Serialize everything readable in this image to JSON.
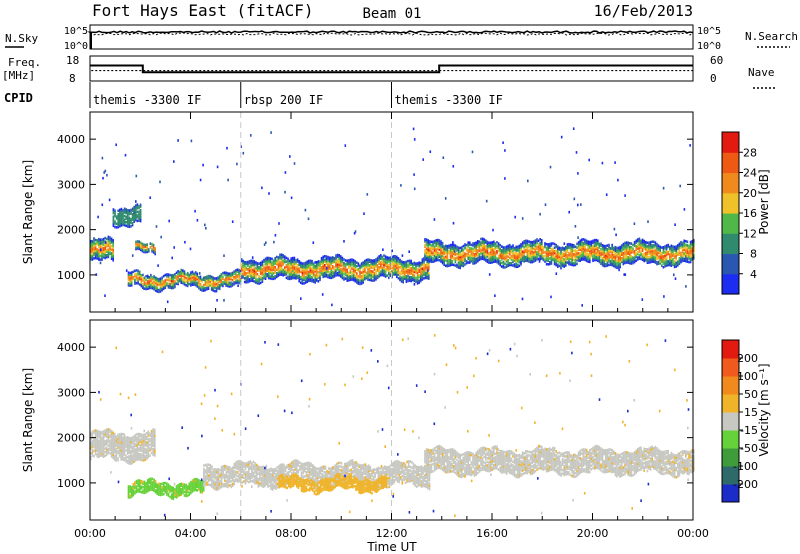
{
  "header": {
    "title": "Fort Hays East (fitACF)",
    "beam": "Beam 01",
    "date": "16/Feb/2013"
  },
  "top_panels": {
    "nsky_label": "N.Sky",
    "nsearch_label": "N.Search",
    "noise_left_ticks": [
      "10^5",
      "10^0"
    ],
    "noise_right_ticks": [
      "10^5",
      "10^0"
    ],
    "freq_label_1": "Freq.",
    "freq_label_2": "[MHz]",
    "freq_ticks": [
      "18",
      "8"
    ],
    "nave_label": "Nave",
    "nave_ticks": [
      "60",
      "0"
    ],
    "cpid_label": "CPID",
    "freq_steps": [
      {
        "t0": 0.0,
        "t1": 2.1,
        "mhz": 14.2
      },
      {
        "t0": 2.1,
        "t1": 13.9,
        "mhz": 11.5
      },
      {
        "t0": 13.9,
        "t1": 24.0,
        "mhz": 14.2
      }
    ],
    "nave_level": 25,
    "cpid_segments": [
      {
        "start_hour": 0,
        "label": "themis -3300 IF"
      },
      {
        "start_hour": 6,
        "label": "rbsp 200 IF"
      },
      {
        "start_hour": 12,
        "label": "themis -3300 IF"
      }
    ]
  },
  "chart_data": [
    {
      "type": "heatmap",
      "quantity": "Power",
      "ylabel": "Slant Range [km]",
      "xlabel": "Time UT",
      "xlim": [
        0,
        24
      ],
      "ylim": [
        180,
        4600
      ],
      "yticks": [
        "1000",
        "2000",
        "3000",
        "4000"
      ],
      "colorbar_label": "Power [dB]",
      "colorbar_ticks": [
        "4",
        "8",
        "12",
        "16",
        "20",
        "24",
        "28"
      ],
      "colorbar_colors": [
        "#1c2cf0",
        "#2a58b0",
        "#2f8a6e",
        "#4fb848",
        "#f0c22a",
        "#f08a1c",
        "#ee5a14",
        "#e21a10"
      ],
      "features": [
        {
          "t0": 0.0,
          "t1": 0.9,
          "core_km": 1500,
          "width_km": 450
        },
        {
          "t0": 0.9,
          "t1": 2.0,
          "core_km": 2300,
          "width_km": 380
        },
        {
          "t0": 1.8,
          "t1": 2.6,
          "core_km": 1550,
          "width_km": 200
        },
        {
          "t0": 1.5,
          "t1": 6.0,
          "core_km": 850,
          "width_km": 300
        },
        {
          "t0": 6.0,
          "t1": 13.5,
          "core_km": 1100,
          "width_km": 450
        },
        {
          "t0": 13.3,
          "t1": 24.0,
          "core_km": 1450,
          "width_km": 450
        }
      ]
    },
    {
      "type": "heatmap",
      "quantity": "Velocity",
      "ylabel": "Slant Range [km]",
      "xlabel": "Time UT",
      "xlim": [
        0,
        24
      ],
      "ylim": [
        180,
        4600
      ],
      "yticks": [
        "1000",
        "2000",
        "3000",
        "4000"
      ],
      "colorbar_label": "Velocity [m s⁻¹]",
      "colorbar_ticks": [
        "200",
        "100",
        "50",
        "15",
        "-15",
        "-50",
        "-100",
        "-200"
      ],
      "colorbar_colors": [
        "#1c2cc8",
        "#2e6a6a",
        "#3e9c3a",
        "#66d23a",
        "#c8c8c2",
        "#f0b42a",
        "#f08a1c",
        "#f05a1c",
        "#e21a10"
      ],
      "features": [
        {
          "t0": 0.0,
          "t1": 2.6,
          "core_km": 1800,
          "width_km": 600,
          "color": "#c8c8c2"
        },
        {
          "t0": 1.5,
          "t1": 4.5,
          "core_km": 850,
          "width_km": 250,
          "color": "#66d23a"
        },
        {
          "t0": 4.5,
          "t1": 13.5,
          "core_km": 1150,
          "width_km": 450,
          "color": "#c8c8c2"
        },
        {
          "t0": 7.5,
          "t1": 11.8,
          "core_km": 950,
          "width_km": 250,
          "color": "#f0b42a"
        },
        {
          "t0": 13.3,
          "t1": 24.0,
          "core_km": 1450,
          "width_km": 500,
          "color": "#c8c8c2"
        }
      ]
    }
  ],
  "x_axis": {
    "ticks": [
      "00:00",
      "04:00",
      "08:00",
      "12:00",
      "16:00",
      "20:00",
      "00:00"
    ],
    "label": "Time UT"
  }
}
